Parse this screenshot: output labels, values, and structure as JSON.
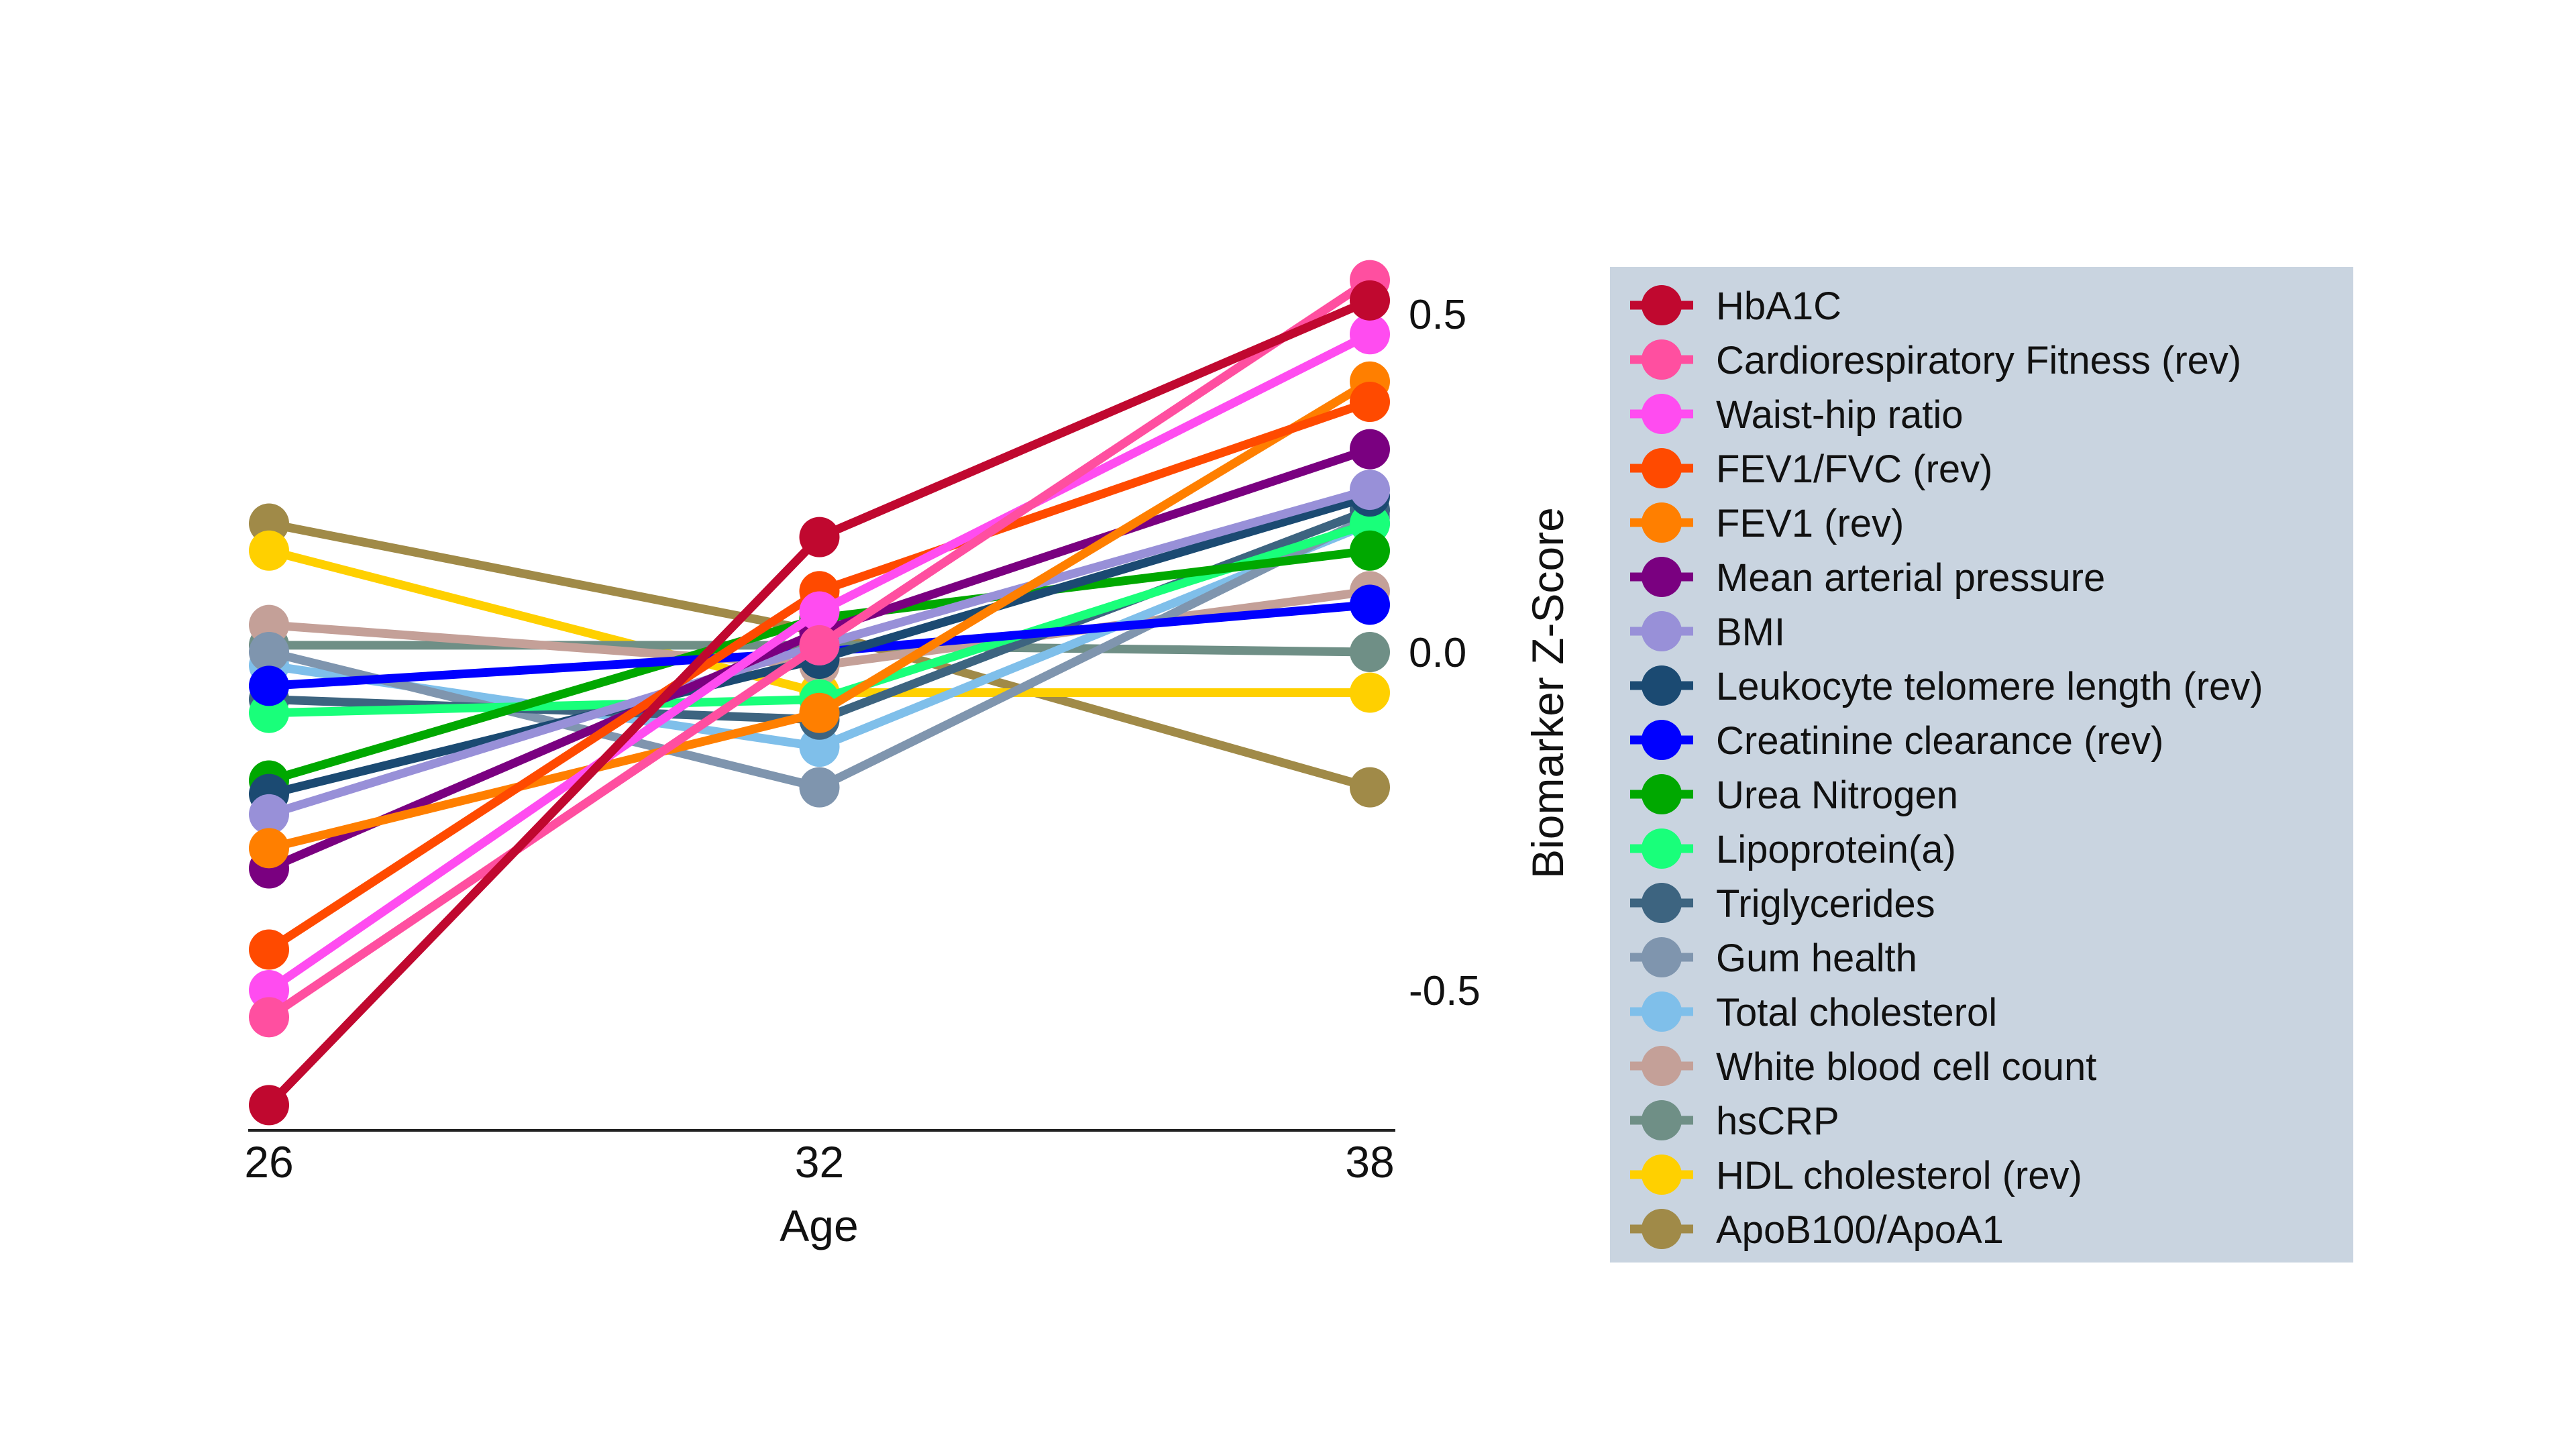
{
  "chart_data": {
    "type": "line",
    "title": "",
    "xlabel": "Age",
    "ylabel": "Biomarker Z-Score",
    "x": [
      26,
      32,
      38
    ],
    "x_tick_labels": [
      "26",
      "32",
      "38"
    ],
    "y_ticks": [
      0.5,
      0.0,
      -0.5
    ],
    "y_tick_labels": [
      "0.5",
      "0.0",
      "-0.5"
    ],
    "ylim": [
      -0.72,
      0.6
    ],
    "y_axis_position": "right",
    "grid": false,
    "legend_placement": "right",
    "legend_background": "#c9d4e0",
    "series": [
      {
        "name": "HbA1C",
        "color": "#c0082f",
        "values": [
          -0.67,
          0.17,
          0.52
        ]
      },
      {
        "name": "Cardiorespiratory Fitness (rev)",
        "color": "#ff4fa0",
        "values": [
          -0.54,
          0.01,
          0.55
        ]
      },
      {
        "name": "Waist-hip ratio",
        "color": "#ff4cf0",
        "values": [
          -0.5,
          0.06,
          0.47
        ]
      },
      {
        "name": "FEV1/FVC (rev)",
        "color": "#ff4a00",
        "values": [
          -0.44,
          0.09,
          0.37
        ]
      },
      {
        "name": "FEV1 (rev)",
        "color": "#ff7f00",
        "values": [
          -0.29,
          -0.09,
          0.4
        ]
      },
      {
        "name": "Mean arterial pressure",
        "color": "#7a0080",
        "values": [
          -0.32,
          0.03,
          0.3
        ]
      },
      {
        "name": "BMI",
        "color": "#9890d8",
        "values": [
          -0.24,
          0.01,
          0.24
        ]
      },
      {
        "name": "Leukocyte telomere length (rev)",
        "color": "#1b4a72",
        "values": [
          -0.21,
          -0.01,
          0.23
        ]
      },
      {
        "name": "Creatinine clearance (rev)",
        "color": "#0000ff",
        "values": [
          -0.05,
          0.0,
          0.07
        ]
      },
      {
        "name": "Urea Nitrogen",
        "color": "#00a800",
        "values": [
          -0.19,
          0.05,
          0.15
        ]
      },
      {
        "name": " Lipoprotein(a)",
        "color": "#19ff7a",
        "values": [
          -0.09,
          -0.07,
          0.19
        ]
      },
      {
        "name": "Triglycerides",
        "color": "#3d6480",
        "values": [
          -0.07,
          -0.1,
          0.21
        ]
      },
      {
        "name": "Gum health",
        "color": "#7f95ae",
        "values": [
          0.0,
          -0.2,
          0.2
        ]
      },
      {
        "name": "Total cholesterol",
        "color": "#7fbfea",
        "values": [
          -0.02,
          -0.14,
          0.19
        ]
      },
      {
        "name": "White blood cell count",
        "color": "#c4a098",
        "values": [
          0.04,
          -0.02,
          0.09
        ]
      },
      {
        "name": "hsCRP",
        "color": "#6f8f86",
        "values": [
          0.01,
          0.01,
          0.0
        ]
      },
      {
        "name": "HDL cholesterol (rev)",
        "color": "#ffd000",
        "values": [
          0.15,
          -0.06,
          -0.06
        ]
      },
      {
        "name": "ApoB100/ApoA1",
        "color": "#a08a48",
        "values": [
          0.19,
          0.03,
          -0.2
        ]
      }
    ]
  }
}
